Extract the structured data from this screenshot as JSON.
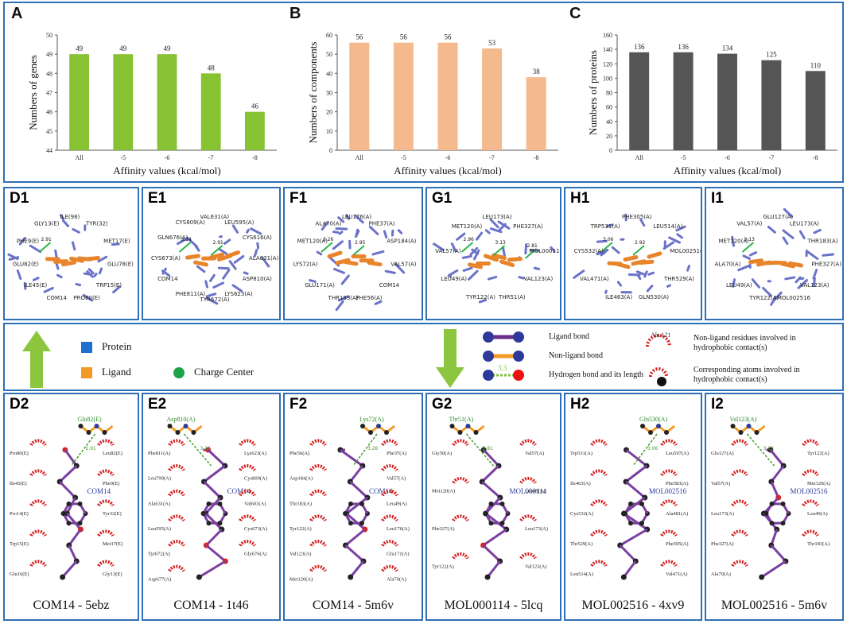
{
  "charts": {
    "A": {
      "label": "A",
      "chart_data": {
        "type": "bar",
        "categories": [
          "All",
          "-5",
          "-6",
          "-7",
          "-8"
        ],
        "values": [
          49,
          49,
          49,
          48,
          46
        ],
        "ylim": [
          44,
          50
        ],
        "yticks": [
          44,
          45,
          46,
          47,
          48,
          49,
          50
        ],
        "ylabel": "Numbers of genes",
        "xlabel": "Affinity values (kcal/mol)",
        "color": "#86c232"
      }
    },
    "B": {
      "label": "B",
      "chart_data": {
        "type": "bar",
        "categories": [
          "All",
          "-5",
          "-6",
          "-7",
          "-8"
        ],
        "values": [
          56,
          56,
          56,
          53,
          38
        ],
        "ylim": [
          0,
          60
        ],
        "yticks": [
          0,
          10,
          20,
          30,
          40,
          50,
          60
        ],
        "ylabel": "Numbers of components",
        "xlabel": "Affinity values (kcal/mol)",
        "color": "#f5b98e"
      }
    },
    "C": {
      "label": "C",
      "chart_data": {
        "type": "bar",
        "categories": [
          "All",
          "-5",
          "-6",
          "-7",
          "-8"
        ],
        "values": [
          136,
          136,
          134,
          125,
          110
        ],
        "ylim": [
          0,
          160
        ],
        "yticks": [
          0,
          20,
          40,
          60,
          80,
          100,
          120,
          140,
          160
        ],
        "ylabel": "Numbers of proteins",
        "xlabel": "Affinity values (kcal/mol)",
        "color": "#555555"
      }
    }
  },
  "row1": [
    {
      "label": "D1",
      "residues": [
        "ILE(98)",
        "TYR(32)",
        "MET17(E)",
        "GLU78(E)",
        "TRP15(E)",
        "PRO80(E)",
        "COM14",
        "ILE45(E)",
        "GLU82(E)",
        "PHE9(E)",
        "GLY13(E)"
      ],
      "hbonds": [
        "2.91"
      ]
    },
    {
      "label": "E1",
      "residues": [
        "VAL631(A)",
        "LEU595(A)",
        "CYS616(A)",
        "ALA631(A)",
        "ASP810(A)",
        "LYS623(A)",
        "TYR672(A)",
        "PHE811(A)",
        "COM14",
        "CYS673(A)",
        "GLN676(A)",
        "CYS809(A)"
      ],
      "hbonds": [
        "3.14",
        "2.91"
      ]
    },
    {
      "label": "F1",
      "residues": [
        "LEU176(A)",
        "PHE37(A)",
        "ASP184(A)",
        "VAL57(A)",
        "COM14",
        "PHE56(A)",
        "THR183(A)",
        "GLU171(A)",
        "LYS72(A)",
        "MET120(A)",
        "ALA70(A)"
      ],
      "hbonds": [
        "3.26",
        "2.95"
      ]
    },
    {
      "label": "G1",
      "residues": [
        "LEU173(A)",
        "PHE327(A)",
        "MOL000114",
        "VAL123(A)",
        "THR51(A)",
        "TYR122(A)",
        "LEU49(A)",
        "VAL57(A)",
        "MET120(A)"
      ],
      "hbonds": [
        "2.96",
        "3.13",
        "2.81"
      ]
    },
    {
      "label": "H1",
      "residues": [
        "PHE305(A)",
        "LEU514(A)",
        "MOL002516",
        "THR529(A)",
        "GLN530(A)",
        "ILE463(A)",
        "VAL471(A)",
        "CYS532(A)",
        "TRP531(A)"
      ],
      "hbonds": [
        "3.06",
        "2.92"
      ]
    },
    {
      "label": "I1",
      "residues": [
        "GLU127(A)",
        "LEU173(A)",
        "THR183(A)",
        "PHE327(A)",
        "VAL123(A)",
        "MOL002516",
        "TYR122(A)",
        "LEU49(A)",
        "ALA70(A)",
        "MET120(A)",
        "VAL57(A)"
      ],
      "hbonds": [
        "3.13"
      ]
    }
  ],
  "legend": {
    "protein": "Protein",
    "ligand": "Ligand",
    "charge_center": "Charge Center",
    "ligand_bond": "Ligand bond",
    "non_ligand_bond": "Non-ligand bond",
    "hbond": "Hydrogen bond and its length",
    "hbond_len": "3.3",
    "residue_example": "Ala 121",
    "hydrophobic": "Non-ligand residues involved in hydrophobic contact(s)",
    "corresponding": "Corresponding atoms involved in hydrophobic contact(s)",
    "colors": {
      "protein": "#1f6fd1",
      "ligand": "#f39a26",
      "charge": "#1fa34a",
      "arrow": "#8cc63f"
    }
  },
  "row2": [
    {
      "label": "D2",
      "ligand": "COM14",
      "hbond_res": "Glu82(E)",
      "hbond_len": "2.91",
      "residues": [
        "Pro80(E)",
        "Leu82(E)",
        "Ile45(E)",
        "Phe9(E)",
        "Pro14(E)",
        "Tyr32(E)",
        "Trp15(E)",
        "Met17(E)",
        "Glu16(E)",
        "Gly13(E)"
      ],
      "caption": "COM14 - 5ebz"
    },
    {
      "label": "E2",
      "ligand": "COM14",
      "hbond_res": "Asp810(A)",
      "hbond_len": "3.14",
      "residues": [
        "Phe811(A)",
        "Lys623(A)",
        "Leu799(A)",
        "Cys809(A)",
        "Ala631(A)",
        "Val603(A)",
        "Leu595(A)",
        "Cys673(A)",
        "Tyr672(A)",
        "Gly676(A)",
        "Asp677(A)"
      ],
      "caption": "COM14 - 1t46"
    },
    {
      "label": "F2",
      "ligand": "COM14",
      "hbond_res": "Lys72(A)",
      "hbond_len": "3.26",
      "residues": [
        "Phe56(A)",
        "Phe37(A)",
        "Asp184(A)",
        "Val57(A)",
        "Thr183(A)",
        "Leu49(A)",
        "Tyr122(A)",
        "Leu176(A)",
        "Val123(A)",
        "Glu171(A)",
        "Met120(A)",
        "Ala70(A)"
      ],
      "caption": "COM14 - 5m6v"
    },
    {
      "label": "G2",
      "ligand": "MOL000114",
      "hbond_res": "Thr51(A)",
      "hbond_len": "2.81",
      "residues": [
        "Gly50(A)",
        "Val57(A)",
        "Met120(A)",
        "Leu49(A)",
        "Phe327(A)",
        "Leu173(A)",
        "Tyr122(A)",
        "Val123(A)"
      ],
      "caption": "MOL000114 - 5lcq"
    },
    {
      "label": "H2",
      "ligand": "MOL002516",
      "hbond_res": "Gln530(A)",
      "hbond_len": "3.06",
      "residues": [
        "Trp531(A)",
        "Leu597(A)",
        "Ile463(A)",
        "Phe583(A)",
        "Cys532(A)",
        "Ala481(A)",
        "Thr529(A)",
        "Phe595(A)",
        "Leu514(A)",
        "Val471(A)"
      ],
      "caption": "MOL002516 - 4xv9"
    },
    {
      "label": "I2",
      "ligand": "MOL002516",
      "hbond_res": "Val123(A)",
      "hbond_len": "3.13",
      "residues": [
        "Glu127(A)",
        "Tyr122(A)",
        "Val57(A)",
        "Met120(A)",
        "Leu173(A)",
        "Leu49(A)",
        "Phe327(A)",
        "Thr183(A)",
        "Ala70(A)"
      ],
      "caption": "MOL002516 - 5m6v"
    }
  ]
}
